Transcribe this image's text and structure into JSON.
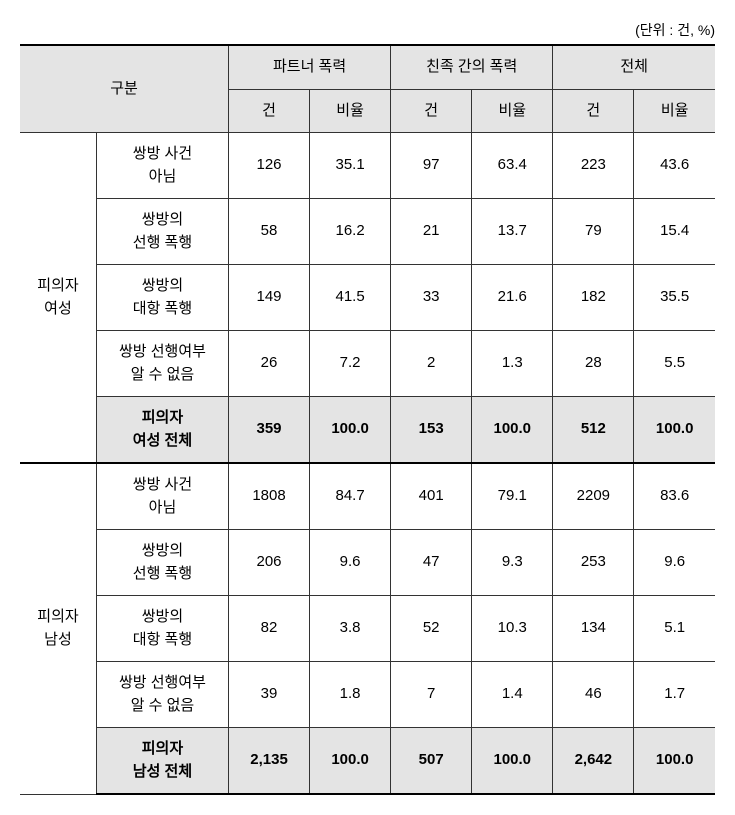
{
  "unit_label": "(단위 : 건, %)",
  "header": {
    "category": "구분",
    "groups": [
      "파트너 폭력",
      "친족 간의 폭력",
      "전체"
    ],
    "sub": [
      "건",
      "비율"
    ]
  },
  "sections": [
    {
      "group_label": "피의자\n여성",
      "rows": [
        {
          "label": "쌍방 사건\n아님",
          "cells": [
            "126",
            "35.1",
            "97",
            "63.4",
            "223",
            "43.6"
          ]
        },
        {
          "label": "쌍방의\n선행 폭행",
          "cells": [
            "58",
            "16.2",
            "21",
            "13.7",
            "79",
            "15.4"
          ]
        },
        {
          "label": "쌍방의\n대항 폭행",
          "cells": [
            "149",
            "41.5",
            "33",
            "21.6",
            "182",
            "35.5"
          ]
        },
        {
          "label": "쌍방 선행여부\n알 수 없음",
          "cells": [
            "26",
            "7.2",
            "2",
            "1.3",
            "28",
            "5.5"
          ]
        }
      ],
      "subtotal": {
        "label": "피의자\n여성 전체",
        "cells": [
          "359",
          "100.0",
          "153",
          "100.0",
          "512",
          "100.0"
        ]
      }
    },
    {
      "group_label": "피의자\n남성",
      "rows": [
        {
          "label": "쌍방 사건\n아님",
          "cells": [
            "1808",
            "84.7",
            "401",
            "79.1",
            "2209",
            "83.6"
          ]
        },
        {
          "label": "쌍방의\n선행 폭행",
          "cells": [
            "206",
            "9.6",
            "47",
            "9.3",
            "253",
            "9.6"
          ]
        },
        {
          "label": "쌍방의\n대항 폭행",
          "cells": [
            "82",
            "3.8",
            "52",
            "10.3",
            "134",
            "5.1"
          ]
        },
        {
          "label": "쌍방 선행여부\n알 수 없음",
          "cells": [
            "39",
            "1.8",
            "7",
            "1.4",
            "46",
            "1.7"
          ]
        }
      ],
      "subtotal": {
        "label": "피의자\n남성 전체",
        "cells": [
          "2,135",
          "100.0",
          "507",
          "100.0",
          "2,642",
          "100.0"
        ]
      }
    }
  ]
}
